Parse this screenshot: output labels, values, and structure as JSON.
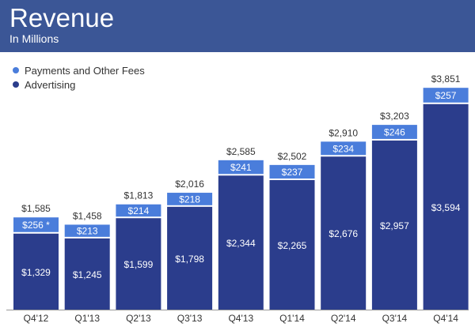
{
  "header": {
    "title": "Revenue",
    "subtitle": "In Millions"
  },
  "colors": {
    "header_bg": "#3b5696",
    "payments": "#4a7ddb",
    "advertising": "#2b3d8c",
    "axis": "#999999"
  },
  "chart_data": {
    "type": "bar",
    "stacked": true,
    "categories": [
      "Q4'12",
      "Q1'13",
      "Q2'13",
      "Q3'13",
      "Q4'13",
      "Q1'14",
      "Q2'14",
      "Q3'14",
      "Q4'14"
    ],
    "series": [
      {
        "name": "Advertising",
        "values": [
          1329,
          1245,
          1599,
          1798,
          2344,
          2265,
          2676,
          2957,
          3594
        ],
        "labels": [
          "$1,329",
          "$1,245",
          "$1,599",
          "$1,798",
          "$2,344",
          "$2,265",
          "$2,676",
          "$2,957",
          "$3,594"
        ]
      },
      {
        "name": "Payments and Other Fees",
        "values": [
          256,
          213,
          214,
          218,
          241,
          237,
          234,
          246,
          257
        ],
        "labels": [
          "$256 *",
          "$213",
          "$214",
          "$218",
          "$241",
          "$237",
          "$234",
          "$246",
          "$257"
        ]
      }
    ],
    "totals": [
      1585,
      1458,
      1813,
      2016,
      2585,
      2502,
      2910,
      3203,
      3851
    ],
    "total_labels": [
      "$1,585",
      "$1,458",
      "$1,813",
      "$2,016",
      "$2,585",
      "$2,502",
      "$2,910",
      "$3,203",
      "$3,851"
    ],
    "title": "Revenue",
    "subtitle": "In Millions",
    "legend_position": "top-left",
    "grid": false
  }
}
